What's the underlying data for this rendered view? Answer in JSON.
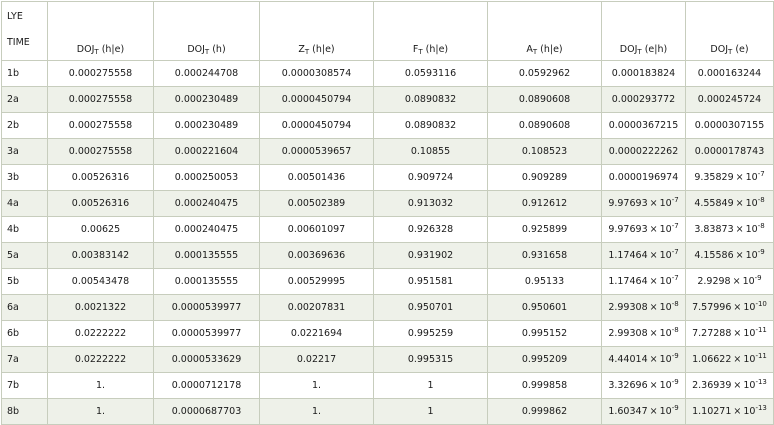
{
  "table": {
    "corner_top": "LYE",
    "corner_bottom": "TIME",
    "columns": [
      {
        "base": "DOJ",
        "sub": "T",
        "arg": " (h|e)"
      },
      {
        "base": "DOJ",
        "sub": "T",
        "arg": " (h)"
      },
      {
        "base": "Z",
        "sub": "T",
        "arg": " (h|e)"
      },
      {
        "base": "F",
        "sub": "T",
        "arg": " (h|e)"
      },
      {
        "base": "A",
        "sub": "T",
        "arg": " (h|e)"
      },
      {
        "base": "DOJ",
        "sub": "T",
        "arg": " (e|h)"
      },
      {
        "base": "DOJ",
        "sub": "T",
        "arg": " (e)"
      }
    ],
    "rows": [
      {
        "time": "1b",
        "cells": [
          {
            "v": "0.000275558"
          },
          {
            "v": "0.000244708"
          },
          {
            "v": "0.0000308574"
          },
          {
            "v": "0.0593116"
          },
          {
            "v": "0.0592962"
          },
          {
            "v": "0.000183824"
          },
          {
            "v": "0.000163244"
          }
        ]
      },
      {
        "time": "2a",
        "cells": [
          {
            "v": "0.000275558"
          },
          {
            "v": "0.000230489"
          },
          {
            "v": "0.0000450794"
          },
          {
            "v": "0.0890832"
          },
          {
            "v": "0.0890608"
          },
          {
            "v": "0.000293772"
          },
          {
            "v": "0.000245724"
          }
        ]
      },
      {
        "time": "2b",
        "cells": [
          {
            "v": "0.000275558"
          },
          {
            "v": "0.000230489"
          },
          {
            "v": "0.0000450794"
          },
          {
            "v": "0.0890832"
          },
          {
            "v": "0.0890608"
          },
          {
            "v": "0.0000367215"
          },
          {
            "v": "0.0000307155"
          }
        ]
      },
      {
        "time": "3a",
        "cells": [
          {
            "v": "0.000275558"
          },
          {
            "v": "0.000221604"
          },
          {
            "v": "0.0000539657"
          },
          {
            "v": "0.10855"
          },
          {
            "v": "0.108523"
          },
          {
            "v": "0.0000222262"
          },
          {
            "v": "0.0000178743"
          }
        ]
      },
      {
        "time": "3b",
        "cells": [
          {
            "v": "0.00526316"
          },
          {
            "v": "0.000250053"
          },
          {
            "v": "0.00501436"
          },
          {
            "v": "0.909724"
          },
          {
            "v": "0.909289"
          },
          {
            "v": "0.0000196974"
          },
          {
            "m": "9.35829",
            "e": "-7"
          }
        ]
      },
      {
        "time": "4a",
        "cells": [
          {
            "v": "0.00526316"
          },
          {
            "v": "0.000240475"
          },
          {
            "v": "0.00502389"
          },
          {
            "v": "0.913032"
          },
          {
            "v": "0.912612"
          },
          {
            "m": "9.97693",
            "e": "-7"
          },
          {
            "m": "4.55849",
            "e": "-8"
          }
        ]
      },
      {
        "time": "4b",
        "cells": [
          {
            "v": "0.00625"
          },
          {
            "v": "0.000240475"
          },
          {
            "v": "0.00601097"
          },
          {
            "v": "0.926328"
          },
          {
            "v": "0.925899"
          },
          {
            "m": "9.97693",
            "e": "-7"
          },
          {
            "m": "3.83873",
            "e": "-8"
          }
        ]
      },
      {
        "time": "5a",
        "cells": [
          {
            "v": "0.00383142"
          },
          {
            "v": "0.000135555"
          },
          {
            "v": "0.00369636"
          },
          {
            "v": "0.931902"
          },
          {
            "v": "0.931658"
          },
          {
            "m": "1.17464",
            "e": "-7"
          },
          {
            "m": "4.15586",
            "e": "-9"
          }
        ]
      },
      {
        "time": "5b",
        "cells": [
          {
            "v": "0.00543478"
          },
          {
            "v": "0.000135555"
          },
          {
            "v": "0.00529995"
          },
          {
            "v": "0.951581"
          },
          {
            "v": "0.95133"
          },
          {
            "m": "1.17464",
            "e": "-7"
          },
          {
            "m": "2.9298",
            "e": "-9"
          }
        ]
      },
      {
        "time": "6a",
        "cells": [
          {
            "v": "0.0021322"
          },
          {
            "v": "0.0000539977"
          },
          {
            "v": "0.00207831"
          },
          {
            "v": "0.950701"
          },
          {
            "v": "0.950601"
          },
          {
            "m": "2.99308",
            "e": "-8"
          },
          {
            "m": "7.57996",
            "e": "-10"
          }
        ]
      },
      {
        "time": "6b",
        "cells": [
          {
            "v": "0.0222222"
          },
          {
            "v": "0.0000539977"
          },
          {
            "v": "0.0221694"
          },
          {
            "v": "0.995259"
          },
          {
            "v": "0.995152"
          },
          {
            "m": "2.99308",
            "e": "-8"
          },
          {
            "m": "7.27288",
            "e": "-11"
          }
        ]
      },
      {
        "time": "7a",
        "cells": [
          {
            "v": "0.0222222"
          },
          {
            "v": "0.0000533629"
          },
          {
            "v": "0.02217"
          },
          {
            "v": "0.995315"
          },
          {
            "v": "0.995209"
          },
          {
            "m": "4.44014",
            "e": "-9"
          },
          {
            "m": "1.06622",
            "e": "-11"
          }
        ]
      },
      {
        "time": "7b",
        "cells": [
          {
            "v": "1."
          },
          {
            "v": "0.0000712178"
          },
          {
            "v": "1."
          },
          {
            "v": "1"
          },
          {
            "v": "0.999858"
          },
          {
            "m": "3.32696",
            "e": "-9"
          },
          {
            "m": "2.36939",
            "e": "-13"
          }
        ]
      },
      {
        "time": "8b",
        "cells": [
          {
            "v": "1."
          },
          {
            "v": "0.0000687703"
          },
          {
            "v": "1."
          },
          {
            "v": "1"
          },
          {
            "v": "0.999862"
          },
          {
            "m": "1.60347",
            "e": "-9"
          },
          {
            "m": "1.10271",
            "e": "-13"
          }
        ]
      }
    ],
    "times_sign": "×",
    "exp_base": "10",
    "colors": {
      "border": "#c7cdbd",
      "stripe": "#eef1e9",
      "text": "#1a1a1a"
    }
  }
}
